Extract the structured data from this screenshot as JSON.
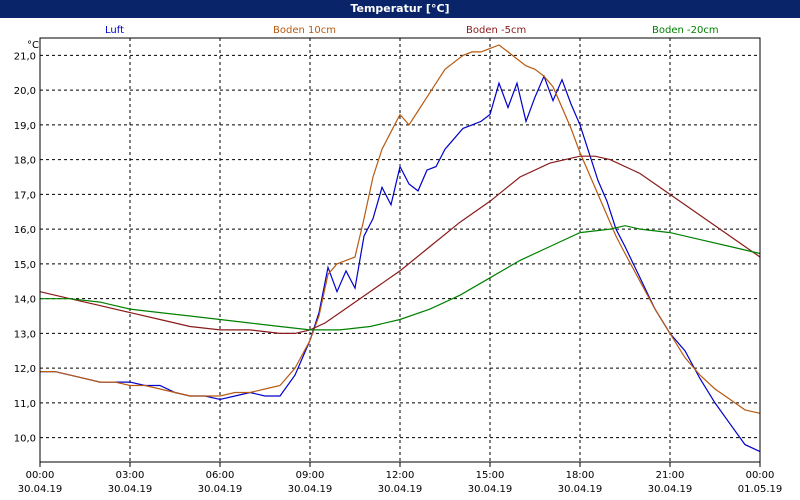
{
  "window": {
    "title": "Temperatur [°C]"
  },
  "chart_data": {
    "type": "line",
    "title": "Temperatur [°C]",
    "ylabel": "°C",
    "ylim": [
      9.3,
      21.5
    ],
    "yticks": [
      "10,0",
      "11,0",
      "12,0",
      "13,0",
      "14,0",
      "15,0",
      "16,0",
      "17,0",
      "18,0",
      "19,0",
      "20,0",
      "21,0"
    ],
    "ytick_values": [
      10,
      11,
      12,
      13,
      14,
      15,
      16,
      17,
      18,
      19,
      20,
      21
    ],
    "xlim": [
      0,
      24
    ],
    "xticks": [
      {
        "time": "00:00",
        "date": "30.04.19"
      },
      {
        "time": "03:00",
        "date": "30.04.19"
      },
      {
        "time": "06:00",
        "date": "30.04.19"
      },
      {
        "time": "09:00",
        "date": "30.04.19"
      },
      {
        "time": "12:00",
        "date": "30.04.19"
      },
      {
        "time": "15:00",
        "date": "30.04.19"
      },
      {
        "time": "18:00",
        "date": "30.04.19"
      },
      {
        "time": "21:00",
        "date": "30.04.19"
      },
      {
        "time": "00:00",
        "date": "01.05.19"
      }
    ],
    "grid": true,
    "series": [
      {
        "name": "Luft",
        "color": "#0000cc",
        "x": [
          0,
          0.5,
          1,
          1.5,
          2,
          2.5,
          3,
          3.5,
          4,
          4.5,
          5,
          5.5,
          6,
          6.5,
          7,
          7.5,
          8,
          8.5,
          9,
          9.3,
          9.6,
          9.9,
          10.2,
          10.5,
          10.8,
          11.1,
          11.4,
          11.7,
          12,
          12.3,
          12.6,
          12.9,
          13.2,
          13.5,
          13.8,
          14.1,
          14.4,
          14.7,
          15,
          15.3,
          15.6,
          15.9,
          16.2,
          16.5,
          16.8,
          17.1,
          17.4,
          17.7,
          18,
          18.3,
          18.6,
          18.9,
          19.2,
          19.5,
          20,
          20.5,
          21,
          21.5,
          22,
          22.5,
          23,
          23.5,
          24
        ],
        "y": [
          11.9,
          11.9,
          11.8,
          11.7,
          11.6,
          11.6,
          11.6,
          11.5,
          11.5,
          11.3,
          11.2,
          11.2,
          11.1,
          11.2,
          11.3,
          11.2,
          11.2,
          11.8,
          12.8,
          13.6,
          14.9,
          14.2,
          14.8,
          14.3,
          15.8,
          16.3,
          17.2,
          16.7,
          17.8,
          17.3,
          17.1,
          17.7,
          17.8,
          18.3,
          18.6,
          18.9,
          19.0,
          19.1,
          19.3,
          20.2,
          19.5,
          20.2,
          19.1,
          19.8,
          20.4,
          19.7,
          20.3,
          19.6,
          19.0,
          18.2,
          17.4,
          16.8,
          16.0,
          15.5,
          14.6,
          13.7,
          13.0,
          12.5,
          11.7,
          11.0,
          10.4,
          9.8,
          9.6
        ]
      },
      {
        "name": "Boden 10cm",
        "color": "#b85a10",
        "x": [
          0,
          0.5,
          1,
          1.5,
          2,
          2.5,
          3,
          3.5,
          4,
          4.5,
          5,
          5.5,
          6,
          6.5,
          7,
          7.5,
          8,
          8.5,
          9,
          9.3,
          9.6,
          9.9,
          10.2,
          10.5,
          10.8,
          11.1,
          11.4,
          11.7,
          12,
          12.3,
          12.6,
          12.9,
          13.2,
          13.5,
          13.8,
          14.1,
          14.4,
          14.7,
          15,
          15.3,
          15.6,
          15.9,
          16.2,
          16.5,
          16.8,
          17.1,
          17.4,
          17.7,
          18,
          18.3,
          18.6,
          18.9,
          19.2,
          19.5,
          20,
          20.5,
          21,
          21.5,
          22,
          22.5,
          23,
          23.5,
          24
        ],
        "y": [
          11.9,
          11.9,
          11.8,
          11.7,
          11.6,
          11.6,
          11.5,
          11.5,
          11.4,
          11.3,
          11.2,
          11.2,
          11.2,
          11.3,
          11.3,
          11.4,
          11.5,
          12.0,
          12.8,
          13.5,
          14.7,
          15.0,
          15.1,
          15.2,
          16.3,
          17.5,
          18.3,
          18.8,
          19.3,
          19.0,
          19.4,
          19.8,
          20.2,
          20.6,
          20.8,
          21.0,
          21.1,
          21.1,
          21.2,
          21.3,
          21.1,
          20.9,
          20.7,
          20.6,
          20.4,
          20.1,
          19.5,
          18.9,
          18.2,
          17.6,
          17.0,
          16.4,
          15.8,
          15.3,
          14.5,
          13.7,
          13.0,
          12.3,
          11.8,
          11.4,
          11.1,
          10.8,
          10.7
        ]
      },
      {
        "name": "Boden -5cm",
        "color": "#8b1a1a",
        "x": [
          0,
          1,
          2,
          3,
          4,
          5,
          6,
          7,
          8,
          8.5,
          9,
          9.5,
          10,
          11,
          12,
          13,
          14,
          15,
          16,
          17,
          18,
          18.5,
          19,
          20,
          21,
          22,
          23,
          24
        ],
        "y": [
          14.2,
          14.0,
          13.8,
          13.6,
          13.4,
          13.2,
          13.1,
          13.1,
          13.0,
          13.0,
          13.1,
          13.3,
          13.6,
          14.2,
          14.8,
          15.5,
          16.2,
          16.8,
          17.5,
          17.9,
          18.1,
          18.1,
          18.0,
          17.6,
          17.0,
          16.4,
          15.8,
          15.2
        ]
      },
      {
        "name": "Boden -20cm",
        "color": "#008000",
        "x": [
          0,
          1,
          2,
          3,
          4,
          5,
          6,
          7,
          8,
          9,
          10,
          11,
          12,
          13,
          14,
          15,
          16,
          17,
          18,
          19,
          19.5,
          20,
          21,
          22,
          23,
          24
        ],
        "y": [
          14.0,
          14.0,
          13.9,
          13.7,
          13.6,
          13.5,
          13.4,
          13.3,
          13.2,
          13.1,
          13.1,
          13.2,
          13.4,
          13.7,
          14.1,
          14.6,
          15.1,
          15.5,
          15.9,
          16.0,
          16.1,
          16.0,
          15.9,
          15.7,
          15.5,
          15.3
        ]
      }
    ]
  }
}
